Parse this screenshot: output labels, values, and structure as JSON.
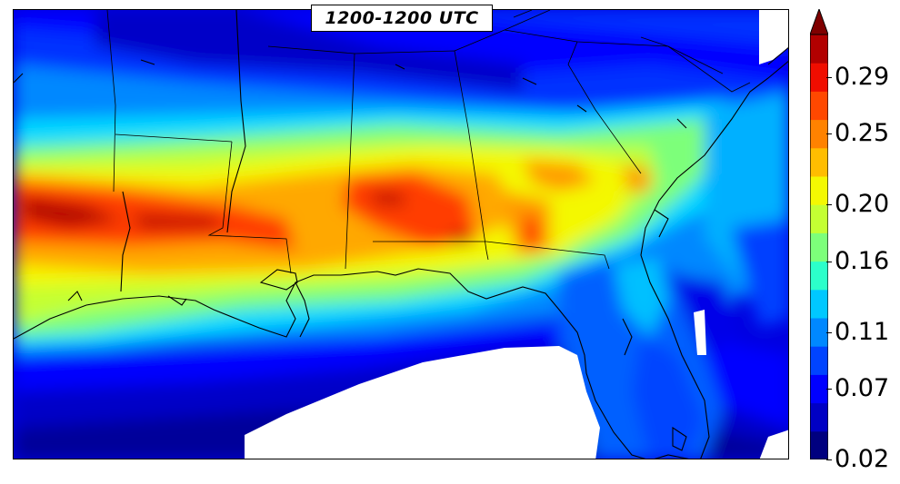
{
  "title": "1200-1200 UTC",
  "colorbar": {
    "ticks": [
      "0.29",
      "0.25",
      "0.20",
      "0.16",
      "0.11",
      "0.07",
      "0.02"
    ],
    "min": 0.02,
    "max": 0.32,
    "extend": "max",
    "colors": [
      "#00007f",
      "#0000c4",
      "#0000ff",
      "#0044ff",
      "#0088ff",
      "#00c8ff",
      "#2cffca",
      "#7dff7a",
      "#c4ff33",
      "#f4f802",
      "#ffbd00",
      "#ff8200",
      "#ff4800",
      "#f00d00",
      "#b20000",
      "#7f0000"
    ]
  },
  "map": {
    "region": "Southeastern United States",
    "field_palette": {
      "dark_blue": "#00009a",
      "blue": "#0000ff",
      "mid_blue": "#0050ff",
      "light_blue": "#0090ff",
      "cyan": "#00e0ff",
      "green": "#7dff7a",
      "yellow_green": "#c4ff33",
      "yellow": "#f4f802",
      "orange": "#ffa800",
      "red": "#ff3c00",
      "dark_red": "#b20000",
      "white_mask": "#ffffff"
    }
  }
}
